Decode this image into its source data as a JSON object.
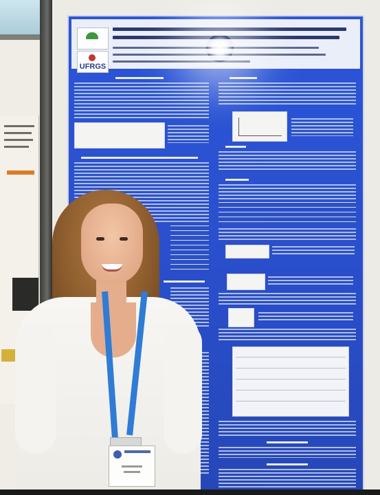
{
  "photo": {
    "poster": {
      "logo_top": "",
      "logo_bottom": "UFRGS"
    }
  },
  "colors": {
    "poster_blue": "#2a56d8",
    "lanyard_blue": "#2d7dd8",
    "shirt_white": "#f7f6f3",
    "hair_brown": "#8e5e2e"
  }
}
